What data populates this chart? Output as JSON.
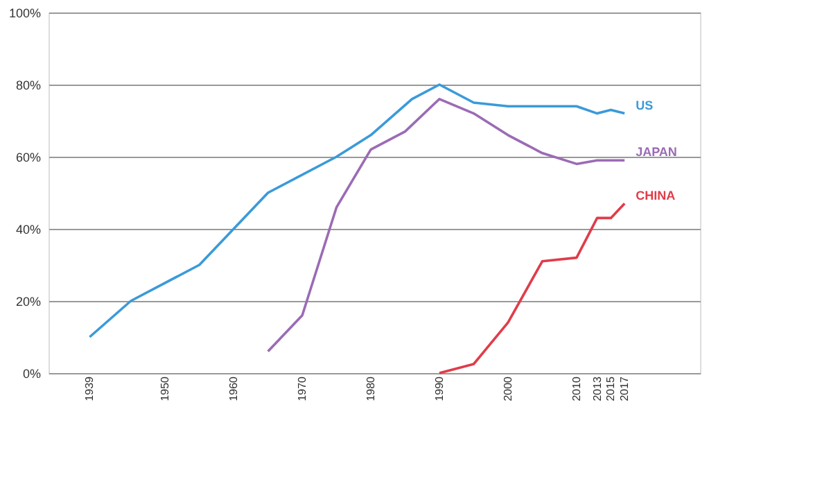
{
  "chart_data": {
    "type": "line",
    "x": [
      1939,
      1945,
      1955,
      1965,
      1975,
      1980,
      1986,
      1990,
      1995,
      2000,
      2010,
      2013,
      2015,
      2017
    ],
    "series": [
      {
        "name": "US",
        "color": "#3a9ad9",
        "values": [
          10,
          20,
          30,
          50,
          60,
          66,
          76,
          80,
          75,
          74,
          74,
          72,
          73,
          72
        ]
      },
      {
        "name": "JAPAN",
        "color": "#9b6bb5",
        "x": [
          1965,
          1970,
          1975,
          1980,
          1985,
          1990,
          1995,
          2000,
          2005,
          2010,
          2013,
          2015,
          2017
        ],
        "values": [
          6,
          16,
          46,
          62,
          67,
          76,
          72,
          66,
          61,
          58,
          59,
          59,
          59
        ]
      },
      {
        "name": "CHINA",
        "color": "#e03c4a",
        "x": [
          1990,
          1995,
          2000,
          2005,
          2010,
          2013,
          2015,
          2017
        ],
        "values": [
          0,
          2.5,
          14,
          31,
          32,
          43,
          43,
          47
        ]
      }
    ],
    "xlim": [
      1933,
      2028
    ],
    "xticks": [
      1939,
      1950,
      1960,
      1970,
      1980,
      1990,
      2000,
      2010,
      2013,
      2015,
      2017
    ],
    "ylim": [
      0,
      100
    ],
    "yticks": [
      {
        "value": 0,
        "label": "0%"
      },
      {
        "value": 20,
        "label": "20%"
      },
      {
        "value": 40,
        "label": "40%"
      },
      {
        "value": 60,
        "label": "60%"
      },
      {
        "value": 80,
        "label": "80%"
      },
      {
        "value": 100,
        "label": "100%"
      }
    ],
    "grid": "y",
    "legend": false,
    "marker": "none",
    "line_style": "solid"
  }
}
